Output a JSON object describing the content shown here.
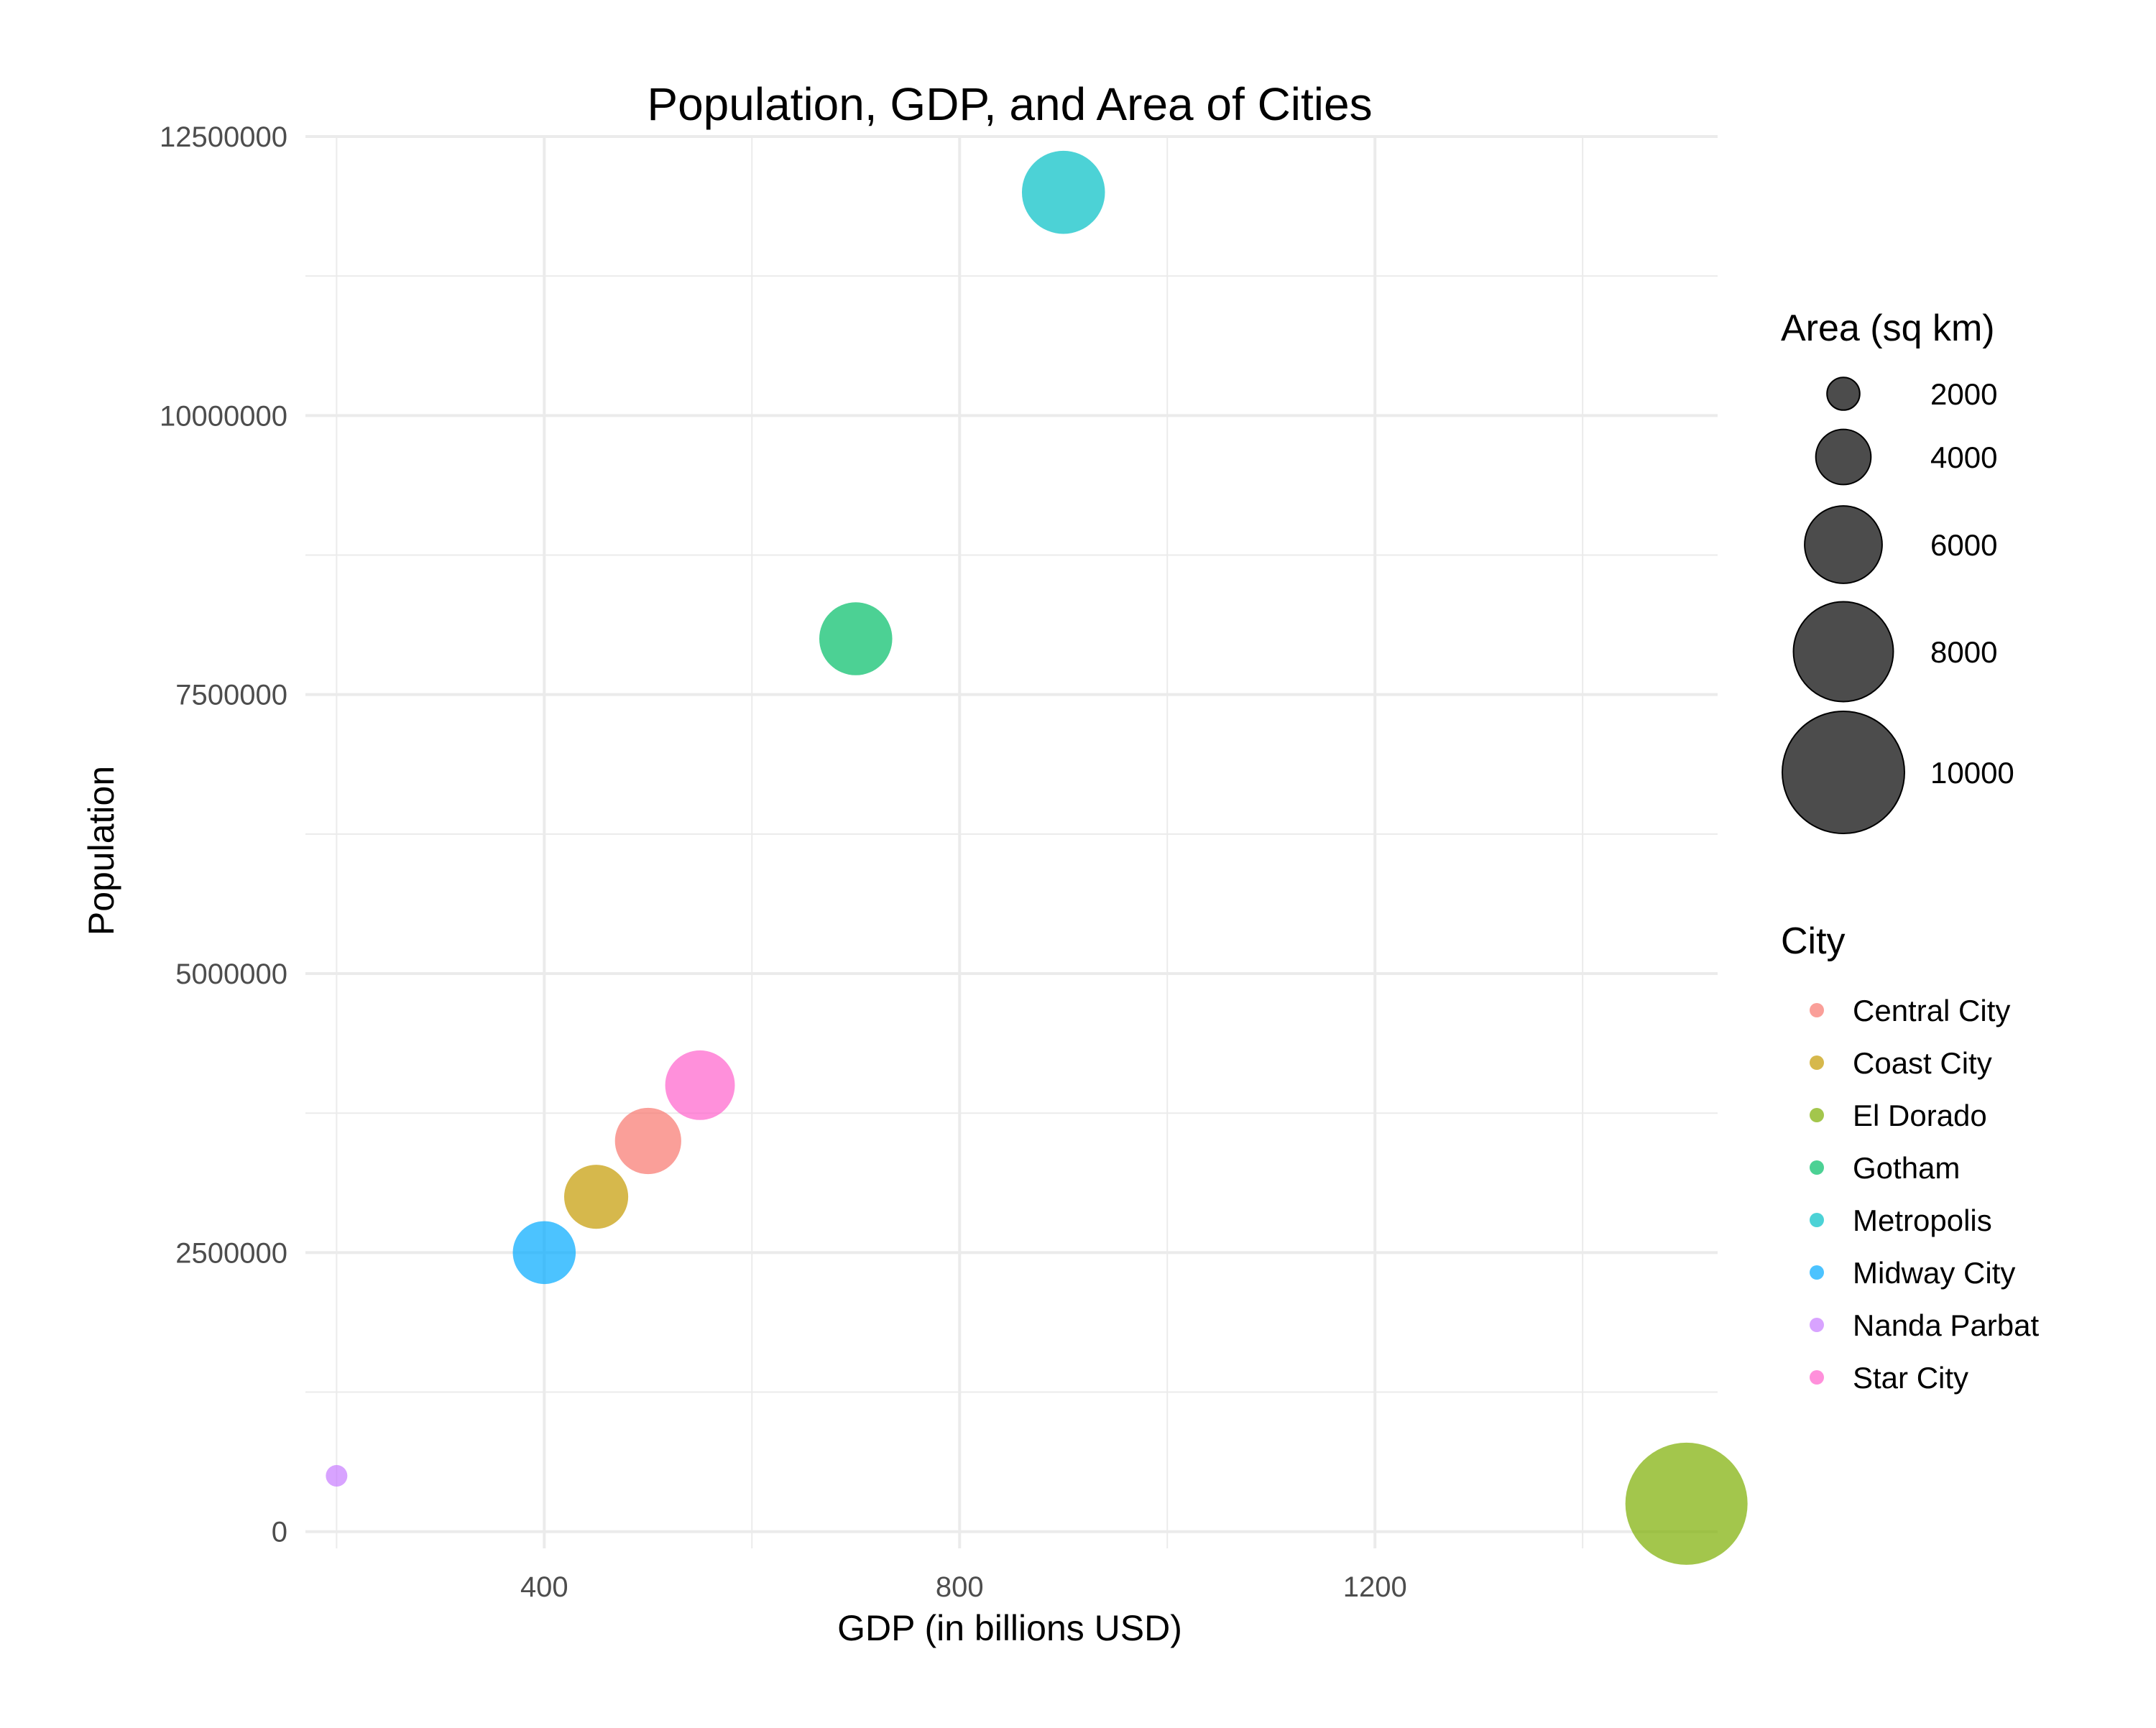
{
  "chart_data": {
    "type": "scatter",
    "title": "Population, GDP, and Area of Cities",
    "xlabel": "GDP (in billions USD)",
    "ylabel": "Population",
    "xlim": [
      170,
      1530
    ],
    "ylim": [
      -150000,
      12500000
    ],
    "x_ticks": [
      400,
      800,
      1200
    ],
    "x_tick_labels": [
      "400",
      "800",
      "1200"
    ],
    "x_minor_ticks": [
      200,
      600,
      1000,
      1400
    ],
    "y_ticks": [
      0,
      2500000,
      5000000,
      7500000,
      10000000,
      12500000
    ],
    "y_tick_labels": [
      "0",
      "2500000",
      "5000000",
      "7500000",
      "10000000",
      "12500000"
    ],
    "y_minor_ticks": [
      1250000,
      3750000,
      6250000,
      8750000,
      11250000
    ],
    "grid": true,
    "legend_position": "right",
    "size_legend": {
      "title": "Area (sq km)",
      "values": [
        2000,
        4000,
        6000,
        8000,
        10000
      ],
      "labels": [
        "2000",
        "4000",
        "6000",
        "8000",
        "10000"
      ]
    },
    "color_legend": {
      "title": "City"
    },
    "series": [
      {
        "name": "Central City",
        "color": "#F8766D",
        "x": 500,
        "y": 3500000,
        "area": 5000
      },
      {
        "name": "Coast City",
        "color": "#C49A00",
        "x": 450,
        "y": 3000000,
        "area": 4800
      },
      {
        "name": "El Dorado",
        "color": "#7CAE00",
        "x": 1500,
        "y": 250000,
        "area": 10000
      },
      {
        "name": "Gotham",
        "color": "#00BE67",
        "x": 700,
        "y": 8000000,
        "area": 5600
      },
      {
        "name": "Metropolis",
        "color": "#00BFC4",
        "x": 900,
        "y": 12000000,
        "area": 6500
      },
      {
        "name": "Midway City",
        "color": "#00A9FF",
        "x": 400,
        "y": 2500000,
        "area": 4700
      },
      {
        "name": "Nanda Parbat",
        "color": "#C77CFF",
        "x": 200,
        "y": 500000,
        "area": 1000
      },
      {
        "name": "Star City",
        "color": "#FF61CC",
        "x": 550,
        "y": 4000000,
        "area": 5300
      }
    ]
  }
}
